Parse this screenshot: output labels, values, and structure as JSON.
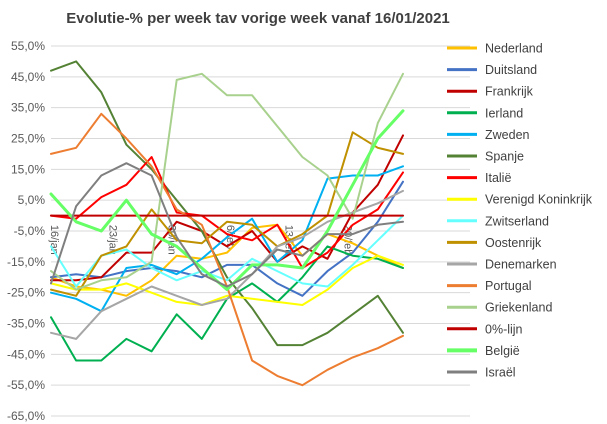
{
  "chart_data": {
    "type": "line",
    "title": "Evolutie-% per week tav vorige week vanaf 16/01/2021",
    "xlabel": "",
    "ylabel": "",
    "ylim": [
      -65,
      55
    ],
    "yticks": [
      55,
      45,
      35,
      25,
      15,
      5,
      -5,
      -15,
      -25,
      -35,
      -45,
      -55,
      -65
    ],
    "ytick_labels": [
      "55,0%",
      "45,0%",
      "35,0%",
      "25,0%",
      "15,0%",
      "5,0%",
      "-5,0%",
      "-15,0%",
      "-25,0%",
      "-35,0%",
      "-45,0%",
      "-55,0%",
      "-65,0%"
    ],
    "x_range": [
      16,
      66
    ],
    "x_tick_positions": [
      16,
      23,
      30,
      37,
      44,
      51
    ],
    "x_tick_labels": [
      "16/jan",
      "23/jan",
      "30/jan",
      "6/feb",
      "13/feb",
      "20/feb"
    ],
    "grid": true,
    "legend_position": "right",
    "series": [
      {
        "name": "Nederland",
        "color": "#ffc000",
        "width": 2,
        "x": [
          16,
          19,
          22,
          25,
          28,
          31,
          34,
          37,
          40,
          43,
          46,
          49,
          52,
          55,
          58
        ],
        "y": [
          -20,
          -23,
          -24,
          -26,
          -21,
          -13,
          -14,
          -12,
          -4,
          -3,
          -13,
          -6,
          -9,
          -13,
          -17
        ]
      },
      {
        "name": "Duitsland",
        "color": "#4472c4",
        "width": 2,
        "x": [
          16,
          19,
          22,
          25,
          28,
          31,
          34,
          37,
          40,
          43,
          46,
          49,
          52,
          55,
          58
        ],
        "y": [
          -20,
          -19,
          -20,
          -18,
          -17,
          -18,
          -20,
          -16,
          -16,
          -22,
          -26,
          -18,
          -12,
          -2,
          11
        ]
      },
      {
        "name": "Frankrijk",
        "color": "#c00000",
        "width": 2,
        "x": [
          16,
          19,
          22,
          25,
          28,
          31,
          34,
          37,
          40,
          43,
          46,
          49,
          52,
          55,
          58
        ],
        "y": [
          -21,
          -21,
          -20,
          -12,
          -12,
          -2,
          -5,
          -10,
          -5,
          -15,
          -10,
          -14,
          1,
          10,
          26
        ]
      },
      {
        "name": "Ierland",
        "color": "#00b050",
        "width": 2,
        "x": [
          16,
          19,
          22,
          25,
          28,
          31,
          34,
          37,
          40,
          43,
          46,
          49,
          52,
          55,
          58
        ],
        "y": [
          -33,
          -47,
          -47,
          -40,
          -44,
          -32,
          -40,
          -27,
          -22,
          -28,
          -20,
          -10,
          -13,
          -14,
          -17
        ]
      },
      {
        "name": "Zweden",
        "color": "#00b0f0",
        "width": 2,
        "x": [
          16,
          19,
          22,
          25,
          28,
          31,
          34,
          37,
          40,
          43,
          46,
          49,
          52,
          55,
          58
        ],
        "y": [
          -25,
          -27,
          -31,
          -17,
          -16,
          -19,
          -14,
          -7,
          -1,
          -15,
          -8,
          12,
          13,
          13,
          16
        ]
      },
      {
        "name": "Spanje",
        "color": "#548235",
        "width": 2,
        "x": [
          16,
          19,
          22,
          25,
          28,
          31,
          34,
          37,
          40,
          43,
          46,
          49,
          52,
          55,
          58
        ],
        "y": [
          47,
          50,
          40,
          23,
          15,
          5,
          -5,
          -20,
          -30,
          -42,
          -42,
          -38,
          -32,
          -26,
          -38
        ]
      },
      {
        "name": "Italië",
        "color": "#ff0000",
        "width": 2,
        "x": [
          16,
          19,
          22,
          25,
          28,
          31,
          34,
          37,
          40,
          43,
          46,
          49,
          52,
          55,
          58
        ],
        "y": [
          0,
          -1,
          6,
          10,
          19,
          1,
          0,
          -6,
          -8,
          -3,
          -17,
          -12,
          -3,
          2,
          14
        ]
      },
      {
        "name": "Verenigd Koninkrijk",
        "color": "#ffff00",
        "width": 2,
        "x": [
          16,
          19,
          22,
          25,
          28,
          31,
          34,
          37,
          40,
          43,
          46,
          49,
          52,
          55,
          58
        ],
        "y": [
          -22,
          -24,
          -24,
          -22,
          -25,
          -28,
          -29,
          -26,
          -27,
          -28,
          -29,
          -24,
          -17,
          -13,
          -16
        ]
      },
      {
        "name": "Zwitserland",
        "color": "#66ffff",
        "width": 2,
        "x": [
          16,
          19,
          22,
          25,
          28,
          31,
          34,
          37,
          40,
          43,
          46,
          49,
          52,
          55,
          58
        ],
        "y": [
          -10,
          -23,
          -13,
          -11,
          -17,
          -21,
          -18,
          -21,
          -14,
          -18,
          -22,
          -23,
          -16,
          -8,
          0
        ]
      },
      {
        "name": "Oostenrijk",
        "color": "#bf9000",
        "width": 2,
        "x": [
          16,
          19,
          22,
          25,
          28,
          31,
          34,
          37,
          40,
          43,
          46,
          49,
          52,
          55,
          58
        ],
        "y": [
          -24,
          -26,
          -13,
          -10,
          2,
          -8,
          -9,
          -2,
          -3,
          -10,
          -6,
          0,
          27,
          22,
          20
        ]
      },
      {
        "name": "Denemarken",
        "color": "#a6a6a6",
        "width": 2,
        "x": [
          16,
          19,
          22,
          25,
          28,
          31,
          34,
          37,
          40,
          43,
          46,
          49,
          52,
          55,
          58
        ],
        "y": [
          -38,
          -40,
          -31,
          -27,
          -23,
          -26,
          -29,
          -27,
          -19,
          -10,
          -7,
          -2,
          1,
          4,
          8
        ]
      },
      {
        "name": "Portugal",
        "color": "#ed7d31",
        "width": 2,
        "x": [
          16,
          19,
          22,
          25,
          28,
          31,
          34,
          37,
          40,
          43,
          46,
          49,
          52,
          55,
          58
        ],
        "y": [
          20,
          22,
          33,
          25,
          16,
          2,
          -3,
          -23,
          -47,
          -52,
          -55,
          -50,
          -46,
          -43,
          -39
        ]
      },
      {
        "name": "Griekenland",
        "color": "#a9d18e",
        "width": 2,
        "x": [
          16,
          19,
          22,
          25,
          28,
          31,
          34,
          37,
          40,
          43,
          46,
          49,
          52,
          55,
          58
        ],
        "y": [
          -18,
          -24,
          -21,
          -20,
          -15,
          44,
          46,
          39,
          39,
          29,
          19,
          13,
          -1,
          30,
          46
        ]
      },
      {
        "name": "0%-lijn",
        "color": "#c00000",
        "width": 2,
        "x": [
          16,
          58
        ],
        "y": [
          0,
          0
        ]
      },
      {
        "name": "België",
        "color": "#66ff66",
        "width": 3,
        "x": [
          16,
          19,
          22,
          25,
          28,
          31,
          34,
          37,
          40,
          43,
          46,
          49,
          52,
          55,
          58
        ],
        "y": [
          7,
          -2,
          -5,
          5,
          -6,
          -10,
          -17,
          -24,
          -16,
          -16,
          -17,
          -5,
          10,
          25,
          34
        ]
      },
      {
        "name": "Israël",
        "color": "#7f7f7f",
        "width": 2,
        "x": [
          16,
          19,
          22,
          25,
          28,
          31,
          34,
          37,
          40,
          43,
          46,
          49,
          52,
          55,
          58
        ],
        "y": [
          -22,
          3,
          13,
          17,
          13,
          -7,
          -19,
          -23,
          -19,
          -11,
          -13,
          -6,
          -6,
          -3,
          -2
        ]
      }
    ]
  }
}
